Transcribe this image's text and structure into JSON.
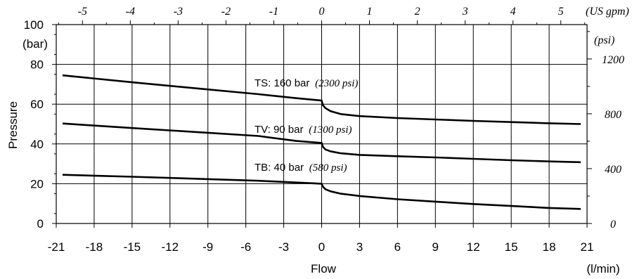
{
  "chart_data": {
    "type": "line",
    "xlabel": "Flow",
    "xunit": "(l/min)",
    "ylabel": "Pressure",
    "yunit": "(bar)",
    "top_axis_unit": "(US gpm)",
    "right_axis_unit": "(psi)",
    "xlim": [
      -21,
      21
    ],
    "ylim": [
      0,
      100
    ],
    "grid": true,
    "x_ticks": [
      "-21",
      "-18",
      "-15",
      "-12",
      "-9",
      "-6",
      "-3",
      "0",
      "3",
      "6",
      "9",
      "12",
      "15",
      "18",
      "21"
    ],
    "y_ticks": [
      "0",
      "20",
      "40",
      "60",
      "80",
      "100"
    ],
    "top_ticks": [
      "-5",
      "-4",
      "-3",
      "-2",
      "-1",
      "0",
      "1",
      "2",
      "3",
      "4",
      "5"
    ],
    "right_ticks": [
      "0",
      "400",
      "800",
      "1200"
    ],
    "series": [
      {
        "name": "TS: 160 bar",
        "name_alt": "(2300 psi)",
        "x": [
          -20.5,
          -15,
          -10,
          -5,
          -2,
          0,
          0.1,
          0.3,
          0.7,
          1.5,
          3,
          6,
          9,
          12,
          15,
          18,
          20.5
        ],
        "y": [
          74.5,
          71,
          68,
          65,
          63,
          61.8,
          59.5,
          58,
          56.5,
          55,
          54,
          53,
          52.3,
          51.6,
          51,
          50.4,
          50
        ]
      },
      {
        "name": "TV: 90 bar",
        "name_alt": "(1300 psi)",
        "x": [
          -20.5,
          -15,
          -10,
          -5,
          -2,
          0,
          0.1,
          0.3,
          0.7,
          1.5,
          3,
          6,
          9,
          12,
          15,
          18,
          20.5
        ],
        "y": [
          50.3,
          48,
          46,
          44,
          41.5,
          40.5,
          38.5,
          37.2,
          36.3,
          35.3,
          34.5,
          33.8,
          33.2,
          32.5,
          31.8,
          31.2,
          30.8
        ]
      },
      {
        "name": "TB: 40 bar",
        "name_alt": "(580 psi)",
        "x": [
          -20.5,
          -15,
          -10,
          -5,
          -2,
          0,
          0.1,
          0.3,
          0.7,
          1.5,
          3,
          6,
          9,
          12,
          15,
          18,
          20.5
        ],
        "y": [
          24.5,
          23.5,
          22.5,
          21.5,
          20.6,
          20,
          18.5,
          17.2,
          16.2,
          15,
          13.8,
          12.2,
          11,
          9.8,
          8.8,
          7.8,
          7.3
        ]
      }
    ]
  }
}
